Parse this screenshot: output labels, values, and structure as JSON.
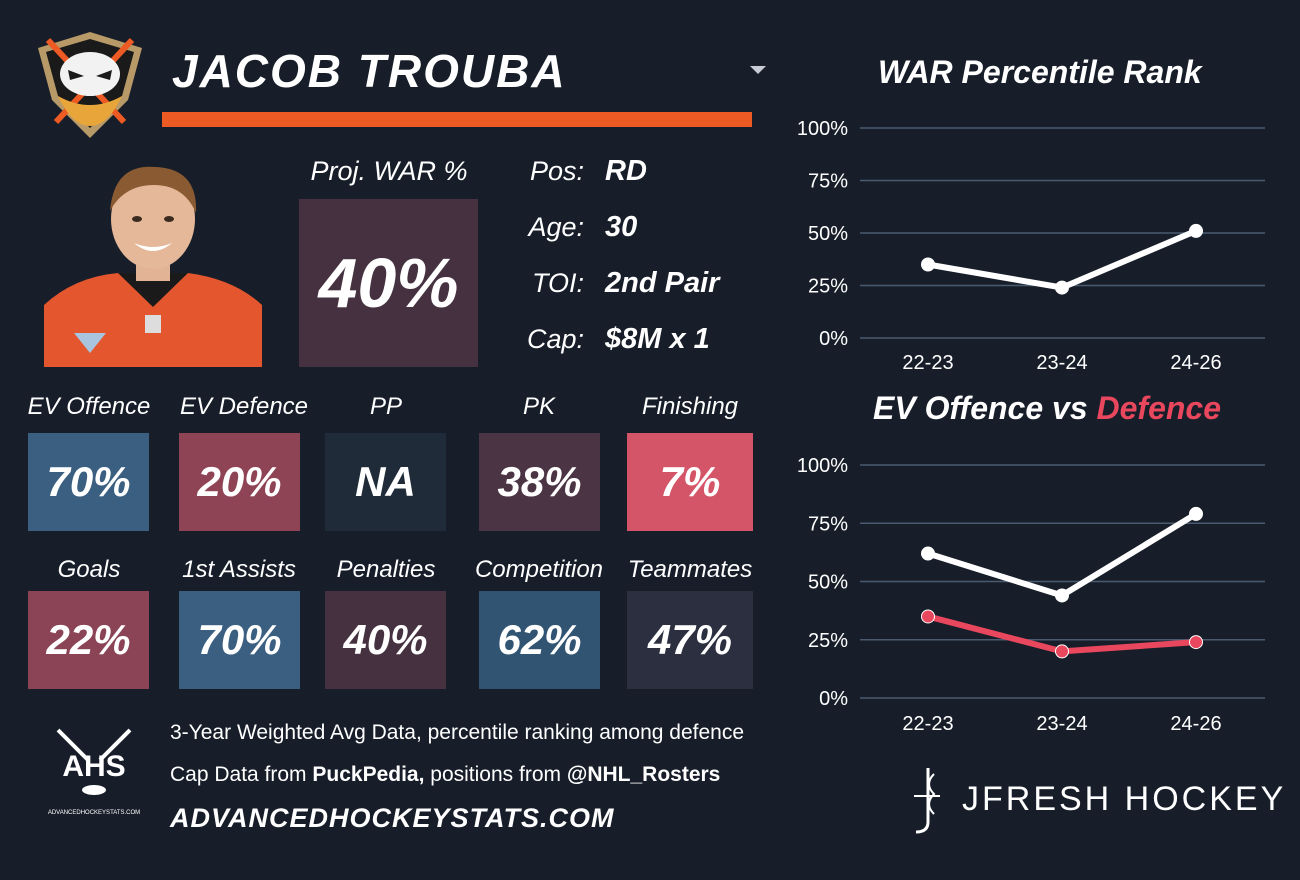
{
  "header": {
    "player_name": "JACOB TROUBA"
  },
  "colors": {
    "accent": "#ee5a24",
    "defence_line": "#e8475d",
    "offence_line": "#ffffff"
  },
  "icons": {
    "team_logo": "ducks-logo-icon",
    "dropdown": "caret-down-icon",
    "player_photo": "player-photo",
    "ahs_logo": "ahs-logo-icon",
    "jfresh_logo": "jfresh-logo-icon"
  },
  "projection": {
    "label": "Proj. WAR %",
    "value": "40%"
  },
  "info": {
    "pos_label": "Pos:",
    "pos_value": "RD",
    "age_label": "Age:",
    "age_value": "30",
    "toi_label": "TOI:",
    "toi_value": "2nd Pair",
    "cap_label": "Cap:",
    "cap_value": "$8M x 1"
  },
  "tiles_row1": [
    {
      "label": "EV Offence",
      "value": "70%",
      "color": "#3b5f80"
    },
    {
      "label": "EV Defence",
      "value": "20%",
      "color": "#8e4454"
    },
    {
      "label": "PP",
      "value": "NA",
      "color": "#1f2b38"
    },
    {
      "label": "PK",
      "value": "38%",
      "color": "#4b3444"
    },
    {
      "label": "Finishing",
      "value": "7%",
      "color": "#d45468"
    }
  ],
  "tiles_row2": [
    {
      "label": "Goals",
      "value": "22%",
      "color": "#8a4456"
    },
    {
      "label": "1st Assists",
      "value": "70%",
      "color": "#3b5f80"
    },
    {
      "label": "Penalties",
      "value": "40%",
      "color": "#45313f"
    },
    {
      "label": "Competition",
      "value": "62%",
      "color": "#315472"
    },
    {
      "label": "Teammates",
      "value": "47%",
      "color": "#2b2f3f"
    }
  ],
  "chart_data": [
    {
      "type": "line",
      "title": "WAR Percentile Rank",
      "categories": [
        "22-23",
        "23-24",
        "24-26"
      ],
      "series": [
        {
          "values": [
            35,
            24,
            51
          ],
          "color": "#ffffff"
        }
      ],
      "yticks": [
        "100%",
        "75%",
        "50%",
        "25%",
        "0%"
      ],
      "ylim": [
        0,
        100
      ],
      "grid": true
    },
    {
      "type": "line",
      "title_part1": "EV Offence vs ",
      "title_part2": "Defence",
      "categories": [
        "22-23",
        "23-24",
        "24-26"
      ],
      "series": [
        {
          "values": [
            62,
            44,
            79
          ],
          "color": "#ffffff"
        },
        {
          "values": [
            35,
            20,
            24
          ],
          "color": "#e8475d"
        }
      ],
      "yticks": [
        "100%",
        "75%",
        "50%",
        "25%",
        "0%"
      ],
      "ylim": [
        0,
        100
      ],
      "grid": true
    }
  ],
  "footer": {
    "line1": "3-Year Weighted Avg Data, percentile ranking among defence",
    "line2_prefix": "Cap Data from ",
    "line2_source1": "PuckPedia,",
    "line2_middle": " positions from ",
    "line2_source2": "@NHL_Rosters",
    "site": "ADVANCEDHOCKEYSTATS.COM",
    "ahs_text": "AHS",
    "ahs_small": "ADVANCEDHOCKEYSTATS.COM",
    "brand": "JFRESH HOCKEY"
  }
}
